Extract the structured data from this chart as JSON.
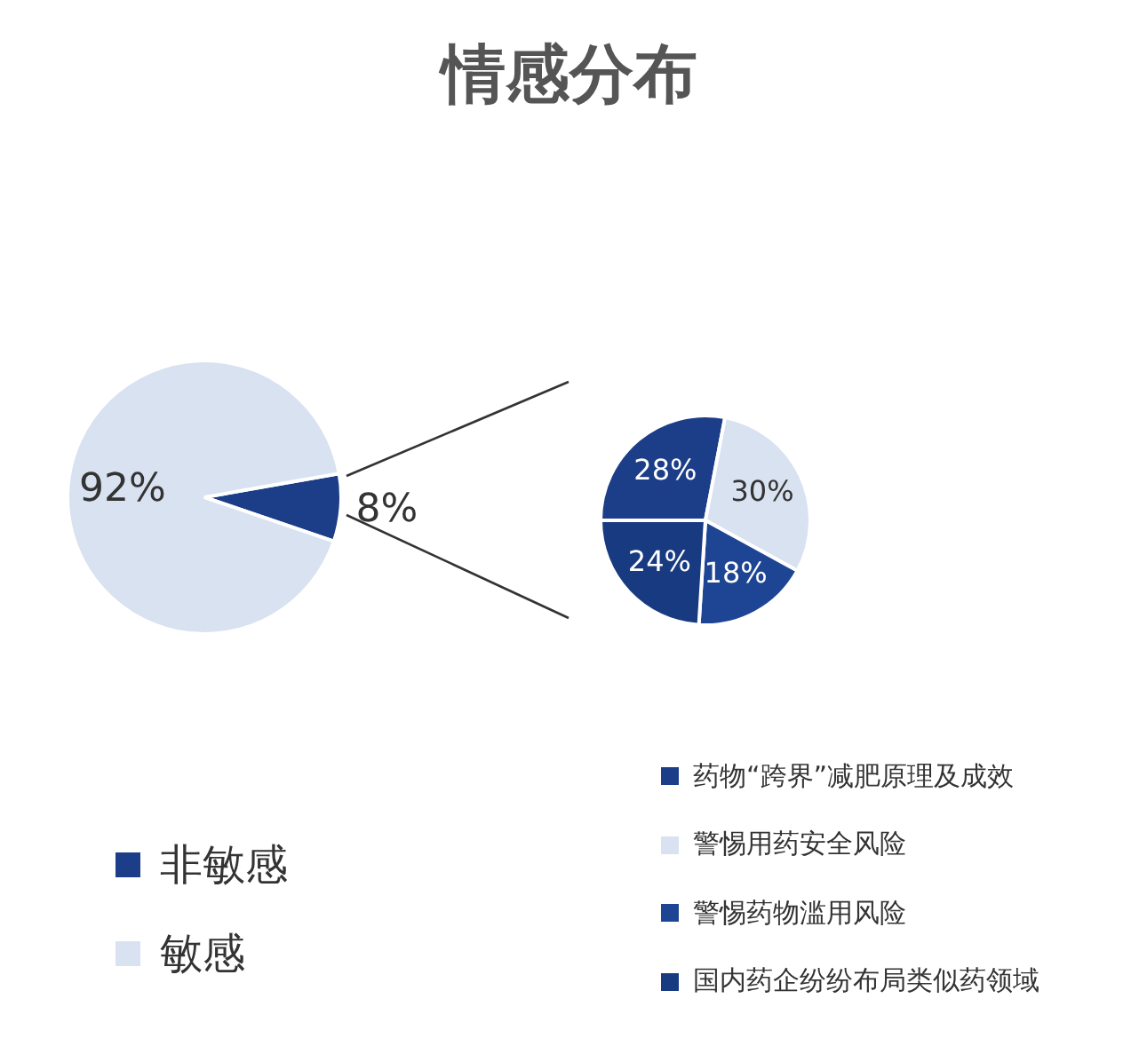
{
  "chart_data": [
    {
      "type": "pie",
      "title": "情感分布",
      "categories": [
        "非敏感",
        "敏感"
      ],
      "values": [
        8,
        92
      ],
      "colors": [
        "#1c3d87",
        "#d9e2f1"
      ],
      "value_labels": [
        "8%",
        "92%"
      ],
      "legend": "bottom left"
    },
    {
      "type": "pie",
      "categories": [
        "药物“跨界”减肥原理及成效",
        "警惕用药安全风险",
        "警惕药物滥用风险",
        "国内药企纷纷布局类似药领域"
      ],
      "values": [
        28,
        30,
        18,
        24
      ],
      "colors": [
        "#1c3d87",
        "#d9e2f1",
        "#1e4593",
        "#173a80"
      ],
      "value_labels": [
        "28%",
        "30%",
        "18%",
        "24%"
      ],
      "legend": "bottom right"
    }
  ]
}
